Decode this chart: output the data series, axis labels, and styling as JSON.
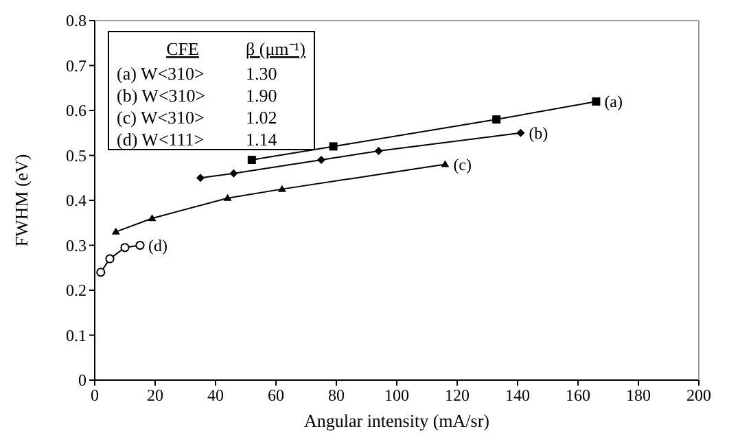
{
  "chart_data": {
    "type": "line",
    "xlabel": "Angular intensity (mA/sr)",
    "ylabel": "FWHM (eV)",
    "xlim": [
      0,
      200
    ],
    "xticks": [
      0,
      20,
      40,
      60,
      80,
      100,
      120,
      140,
      160,
      180,
      200
    ],
    "ylim": [
      0,
      0.8
    ],
    "yticks": [
      0,
      0.1,
      0.2,
      0.3,
      0.4,
      0.5,
      0.6,
      0.7,
      0.8
    ],
    "grid": false,
    "annotations": [
      "CFE",
      "β (μm⁻¹)",
      "(a) W<310>",
      "1.30",
      "(b) W<310>",
      "1.90",
      "(c) W<310>",
      "1.02",
      "(d) W<111>",
      "1.14"
    ],
    "series": [
      {
        "name": "(a)",
        "color": "#000000",
        "marker": "square",
        "x": [
          52,
          79,
          133,
          166
        ],
        "values": [
          0.49,
          0.52,
          0.58,
          0.62
        ]
      },
      {
        "name": "(b)",
        "color": "#000000",
        "marker": "diamond",
        "x": [
          35,
          46,
          75,
          94,
          141
        ],
        "values": [
          0.45,
          0.46,
          0.49,
          0.51,
          0.55
        ]
      },
      {
        "name": "(c)",
        "color": "#000000",
        "marker": "triangle",
        "x": [
          7,
          19,
          44,
          62,
          116
        ],
        "values": [
          0.33,
          0.36,
          0.405,
          0.425,
          0.48
        ]
      },
      {
        "name": "(d)",
        "color": "#000000",
        "marker": "circle",
        "x": [
          2,
          5,
          10,
          15
        ],
        "values": [
          0.24,
          0.27,
          0.295,
          0.3
        ]
      }
    ]
  }
}
